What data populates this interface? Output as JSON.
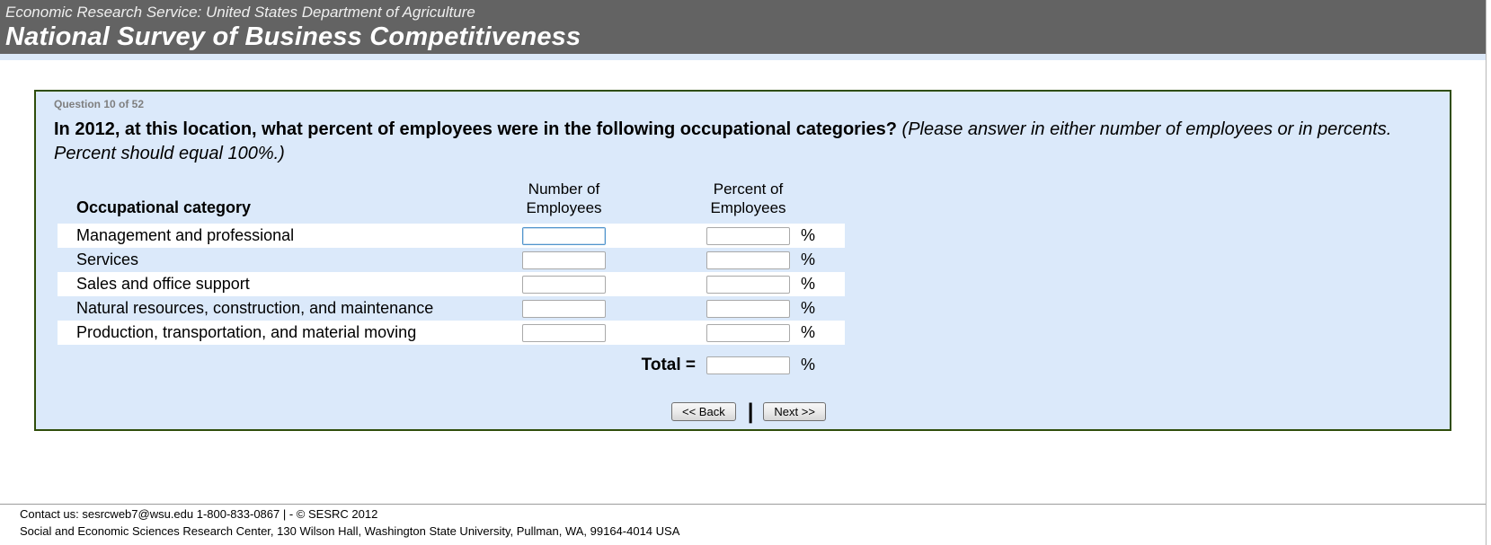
{
  "header": {
    "agency": "Economic Research Service: United States Department of Agriculture",
    "title": "National Survey of Business Competitiveness"
  },
  "question": {
    "counter": "Question 10 of 52",
    "prompt": "In 2012, at this location, what percent of employees were in the following occupational categories?",
    "instructions": "(Please answer in either number of employees or in percents. Percent should equal 100%.)"
  },
  "table": {
    "category_header": "Occupational category",
    "number_header": "Number of\nEmployees",
    "percent_header": "Percent of\nEmployees",
    "percent_sign": "%",
    "rows": [
      {
        "label": "Management and professional",
        "number_value": "",
        "percent_value": ""
      },
      {
        "label": "Services",
        "number_value": "",
        "percent_value": ""
      },
      {
        "label": "Sales and office support",
        "number_value": "",
        "percent_value": ""
      },
      {
        "label": "Natural resources, construction, and maintenance",
        "number_value": "",
        "percent_value": ""
      },
      {
        "label": "Production, transportation, and material moving",
        "number_value": "",
        "percent_value": ""
      }
    ],
    "total_label": "Total =",
    "total_value": ""
  },
  "buttons": {
    "back": "<< Back",
    "separator": "|",
    "next": "Next >>"
  },
  "footer": {
    "line1": "Contact us: sesrcweb7@wsu.edu 1-800-833-0867 | - © SESRC 2012",
    "line2": "Social and Economic Sciences Research Center, 130 Wilson Hall, Washington State University, Pullman, WA, 99164-4014 USA"
  },
  "colors": {
    "header-bg": "#636363",
    "header-text": "#ffffff",
    "accent-strip": "#dbe8f8",
    "panel-bg": "#dbe9fa",
    "panel-border": "#2f4d0a",
    "row-stripe": "#ffffff",
    "input-border": "#a9a9a9",
    "focus-border": "#4f94cd",
    "muted-text": "#7f7f7f"
  }
}
